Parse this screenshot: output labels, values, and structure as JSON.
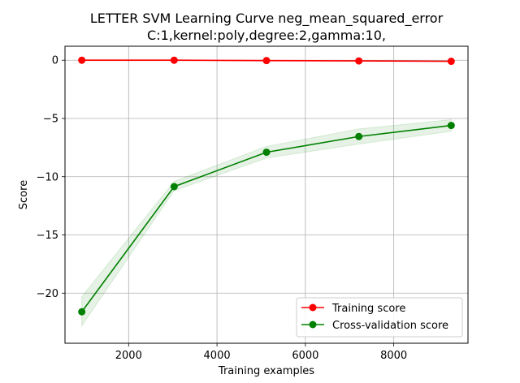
{
  "chart_data": {
    "type": "line",
    "title_line1": "LETTER SVM Learning Curve neg_mean_squared_error",
    "title_line2": "C:1,kernel:poly,degree:2,gamma:10,",
    "xlabel": "Training examples",
    "ylabel": "Score",
    "xlim": [
      560,
      9680
    ],
    "ylim": [
      -24.3,
      1.2
    ],
    "xticks": [
      2000,
      4000,
      6000,
      8000
    ],
    "xtick_labels": [
      "2000",
      "4000",
      "6000",
      "8000"
    ],
    "yticks": [
      0,
      -5,
      -10,
      -15,
      -20
    ],
    "ytick_labels": [
      "0",
      "−5",
      "−10",
      "−15",
      "−20"
    ],
    "grid": true,
    "legend_position": "lower-right",
    "x": [
      940,
      3030,
      5120,
      7210,
      9300
    ],
    "series": [
      {
        "name": "Training score",
        "color": "#ff0000",
        "values": [
          0.0,
          0.0,
          -0.03,
          -0.06,
          -0.09
        ],
        "band_low": [
          -0.05,
          -0.05,
          -0.08,
          -0.1,
          -0.12
        ],
        "band_high": [
          0.05,
          0.05,
          0.02,
          -0.02,
          -0.06
        ]
      },
      {
        "name": "Cross-validation score",
        "color": "#008000",
        "values": [
          -21.6,
          -10.85,
          -7.9,
          -6.55,
          -5.6
        ],
        "band_low": [
          -22.8,
          -11.2,
          -8.4,
          -7.2,
          -6.1
        ],
        "band_high": [
          -20.3,
          -10.4,
          -7.4,
          -5.9,
          -5.1
        ]
      }
    ]
  }
}
